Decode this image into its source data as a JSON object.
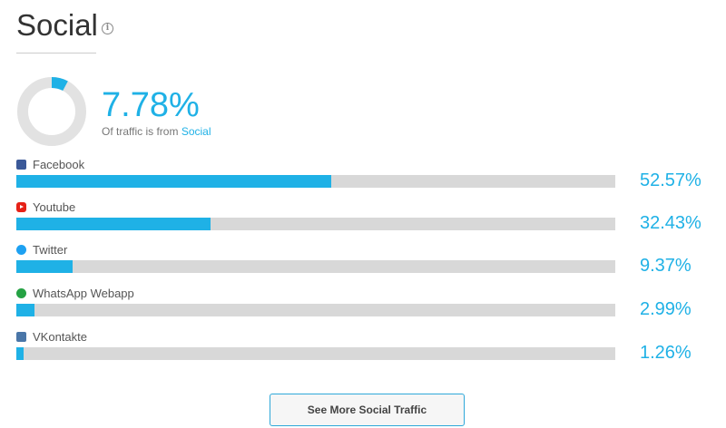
{
  "header": {
    "title": "Social",
    "info_icon": "info-circle-icon",
    "info_glyph": "i"
  },
  "summary": {
    "percent_text": "7.78%",
    "percent_value": 7.78,
    "subtitle_prefix": "Of traffic is from",
    "subtitle_link": "Social"
  },
  "colors": {
    "accent": "#1fb1e6",
    "track": "#d8d8d8",
    "donut_track": "#e2e2e2"
  },
  "sources": [
    {
      "name": "Facebook",
      "value_text": "52.57%",
      "value": 52.57,
      "icon": "facebook-icon",
      "icon_color": "#3b5998"
    },
    {
      "name": "Youtube",
      "value_text": "32.43%",
      "value": 32.43,
      "icon": "youtube-icon",
      "icon_color": "#e62117"
    },
    {
      "name": "Twitter",
      "value_text": "9.37%",
      "value": 9.37,
      "icon": "twitter-icon",
      "icon_color": "#1da1f2"
    },
    {
      "name": "WhatsApp Webapp",
      "value_text": "2.99%",
      "value": 2.99,
      "icon": "whatsapp-icon",
      "icon_color": "#25a244"
    },
    {
      "name": "VKontakte",
      "value_text": "1.26%",
      "value": 1.26,
      "icon": "vkontakte-icon",
      "icon_color": "#4a76a8"
    }
  ],
  "button": {
    "label": "See More Social Traffic"
  }
}
